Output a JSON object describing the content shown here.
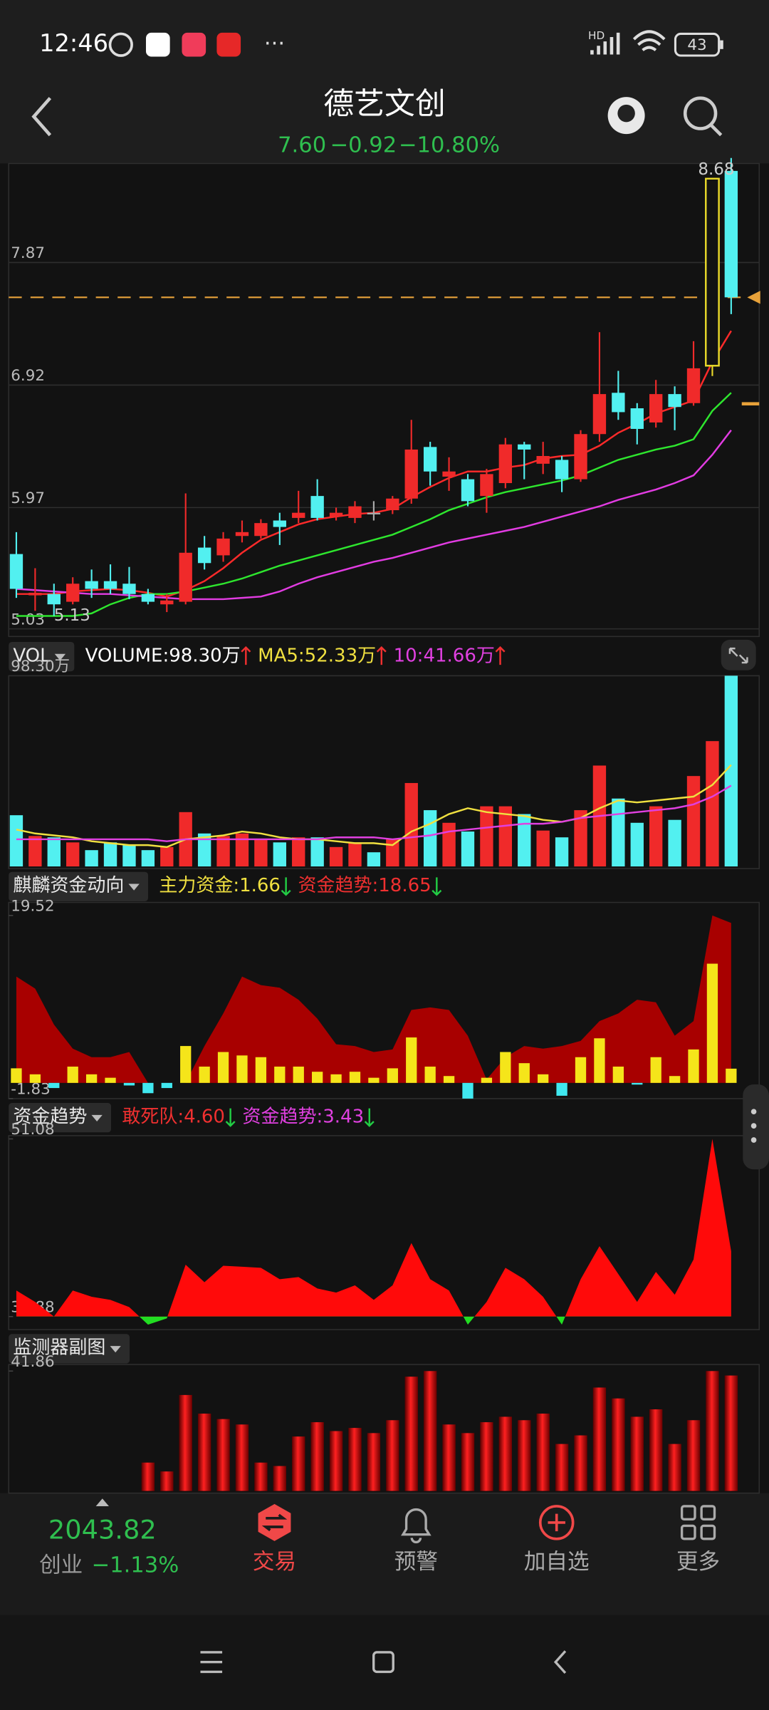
{
  "status_bar": {
    "time": "12:46",
    "network": "HD",
    "battery": "43"
  },
  "header": {
    "title": "德艺文创",
    "price": {
      "value": 7.6,
      "label": "7.60"
    },
    "change": "−0.92",
    "change_pct": "−10.80%"
  },
  "price_chart": {
    "type": "candlestick",
    "ylim": [
      5.03,
      8.68
    ],
    "yticks": [
      5.03,
      5.97,
      6.92,
      7.87
    ],
    "grid": true,
    "open": [
      5.61,
      5.29,
      5.3,
      5.24,
      5.4,
      5.4,
      5.38,
      5.3,
      5.22,
      5.24,
      5.66,
      5.6,
      5.75,
      5.75,
      5.87,
      5.89,
      6.06,
      5.9,
      5.89,
      5.93,
      5.95,
      6.04,
      6.44,
      6.21,
      6.19,
      6.06,
      6.16,
      6.46,
      6.31,
      6.34,
      6.19,
      6.54,
      6.86,
      6.74,
      6.63,
      6.85,
      6.78,
      7.07,
      8.58
    ],
    "high": [
      5.78,
      5.5,
      5.38,
      5.43,
      5.49,
      5.53,
      5.51,
      5.34,
      5.3,
      6.08,
      5.75,
      5.78,
      5.87,
      5.88,
      5.93,
      6.1,
      6.19,
      5.97,
      6.02,
      6.02,
      6.06,
      6.65,
      6.48,
      6.36,
      6.23,
      6.27,
      6.51,
      6.48,
      6.48,
      6.37,
      6.57,
      7.33,
      7.03,
      6.78,
      6.96,
      6.91,
      7.26,
      8.52,
      8.68
    ],
    "low": [
      5.27,
      5.17,
      5.13,
      5.22,
      5.27,
      5.3,
      5.26,
      5.22,
      5.16,
      5.22,
      5.49,
      5.55,
      5.7,
      5.73,
      5.68,
      5.85,
      5.87,
      5.87,
      5.85,
      5.87,
      5.92,
      6.0,
      6.14,
      6.1,
      5.98,
      5.93,
      6.12,
      6.19,
      6.23,
      6.09,
      6.17,
      6.48,
      6.65,
      6.46,
      6.59,
      6.57,
      6.76,
      6.99,
      7.47
    ],
    "close": [
      5.34,
      5.31,
      5.22,
      5.38,
      5.34,
      5.34,
      5.3,
      5.24,
      5.25,
      5.62,
      5.54,
      5.73,
      5.78,
      5.85,
      5.82,
      5.93,
      5.89,
      5.93,
      5.98,
      5.93,
      6.04,
      6.42,
      6.25,
      6.25,
      6.02,
      6.23,
      6.46,
      6.42,
      6.37,
      6.19,
      6.54,
      6.85,
      6.71,
      6.58,
      6.85,
      6.75,
      7.05,
      8.52,
      7.6
    ],
    "colors": {
      "up": "#f02a2a",
      "down": "#52f0f0",
      "flat": "#aaaaaa",
      "highlight": "#e8d82a"
    },
    "highlighted": 37,
    "price_line_color": "#e8a23a",
    "ma_lines": [
      {
        "color": "#ff2a2a",
        "values": [
          5.3,
          5.3,
          5.3,
          5.32,
          5.33,
          5.34,
          5.33,
          5.31,
          5.28,
          5.33,
          5.4,
          5.5,
          5.62,
          5.72,
          5.78,
          5.84,
          5.88,
          5.9,
          5.92,
          5.93,
          5.96,
          6.05,
          6.13,
          6.2,
          6.25,
          6.25,
          6.28,
          6.3,
          6.35,
          6.37,
          6.38,
          6.45,
          6.55,
          6.62,
          6.7,
          6.75,
          6.8,
          7.1,
          7.34
        ]
      },
      {
        "color": "#2ee62e",
        "values": [
          5.13,
          5.13,
          5.13,
          5.13,
          5.15,
          5.22,
          5.27,
          5.3,
          5.3,
          5.32,
          5.35,
          5.38,
          5.42,
          5.47,
          5.52,
          5.56,
          5.6,
          5.64,
          5.68,
          5.72,
          5.76,
          5.82,
          5.88,
          5.95,
          6.0,
          6.05,
          6.09,
          6.12,
          6.15,
          6.18,
          6.22,
          6.28,
          6.34,
          6.38,
          6.42,
          6.45,
          6.5,
          6.72,
          6.86
        ]
      },
      {
        "color": "#e23ce2",
        "values": [
          5.34,
          5.33,
          5.32,
          5.31,
          5.3,
          5.3,
          5.29,
          5.28,
          5.27,
          5.26,
          5.26,
          5.26,
          5.27,
          5.28,
          5.32,
          5.38,
          5.43,
          5.47,
          5.51,
          5.55,
          5.58,
          5.62,
          5.66,
          5.7,
          5.73,
          5.76,
          5.79,
          5.82,
          5.86,
          5.9,
          5.94,
          5.98,
          6.03,
          6.07,
          6.11,
          6.16,
          6.22,
          6.38,
          6.57
        ]
      }
    ]
  },
  "volume": {
    "type": "bar",
    "label": "VOL",
    "indicators": [
      {
        "text": "VOLUME:98.30万",
        "color": "#ffffff",
        "trend": "up"
      },
      {
        "text": "MA5:52.33万",
        "color": "#f0e040",
        "trend": "up"
      },
      {
        "text": "10:41.66万",
        "color": "#e040e0",
        "trend": "up"
      }
    ],
    "ylim": [
      0,
      98.3
    ],
    "yticks": [
      {
        "value": 98.3,
        "label": "98.30万"
      }
    ],
    "values": [
      26.4,
      15.7,
      15,
      12.4,
      8.4,
      12.4,
      11,
      8.4,
      10,
      28,
      17,
      15.7,
      17,
      14,
      12.4,
      15,
      15,
      10,
      12.4,
      7.3,
      14,
      43,
      29,
      22.5,
      18,
      31,
      31,
      27,
      18.5,
      15,
      29,
      52,
      35,
      22.5,
      31,
      24,
      46.6,
      64.6,
      98.3
    ],
    "ma_lines": [
      {
        "color": "#f0e040",
        "values": [
          19,
          17,
          16,
          15,
          13,
          12,
          11,
          11,
          10,
          14,
          15,
          16,
          18,
          17,
          15,
          14,
          14,
          13,
          12,
          12,
          11,
          18,
          22,
          27,
          30,
          28,
          27,
          26,
          24,
          23,
          25,
          30,
          34,
          33,
          34,
          35,
          36,
          42,
          52.33
        ]
      },
      {
        "color": "#e040e0",
        "values": [
          14,
          14,
          14,
          14,
          14,
          14,
          14,
          14,
          13,
          14,
          14,
          14,
          14,
          14,
          14,
          14,
          14,
          15,
          15,
          15,
          14,
          15,
          16,
          18,
          19,
          20,
          21,
          22,
          22,
          23,
          25,
          26,
          27,
          28,
          29,
          30,
          32,
          36,
          41.66
        ]
      }
    ]
  },
  "qilin": {
    "type": "bar",
    "label": "麒麟资金动向",
    "indicators": [
      {
        "text": "主力资金:1.66",
        "color": "#f0e040",
        "trend": "down"
      },
      {
        "text": "资金趋势:18.65",
        "color": "#f03030",
        "trend": "down"
      }
    ],
    "ylim": [
      -1.83,
      19.52
    ],
    "yticks": [
      19.52,
      -1.83
    ],
    "area": {
      "color": "#a80000",
      "values": [
        12.4,
        11,
        6.8,
        4,
        3,
        3,
        3.6,
        0,
        0,
        0,
        4.3,
        8.1,
        12.4,
        11.4,
        11.1,
        9.7,
        7.5,
        4.5,
        4.3,
        3.6,
        3.9,
        8.5,
        8.8,
        8.5,
        5.5,
        0.4,
        3,
        4.3,
        4,
        4.3,
        4.9,
        7.2,
        8.1,
        9.7,
        9.4,
        5.5,
        7.2,
        19.52,
        18.65
      ]
    },
    "values": [
      1.7,
      1,
      -0.6,
      1.9,
      1,
      0.6,
      -0.3,
      -1.2,
      -0.6,
      4.3,
      1.9,
      3.6,
      3.2,
      3,
      1.9,
      1.9,
      1.3,
      1,
      1.3,
      0.6,
      1.7,
      5.3,
      1.9,
      0.8,
      -1.83,
      0.6,
      3.6,
      2.3,
      1,
      -1.5,
      3,
      5.2,
      1.9,
      -0.2,
      3,
      0.8,
      3.9,
      13.9,
      1.66
    ],
    "pos_color": "#f5e51a",
    "neg_color": "#40e8f0"
  },
  "trend": {
    "type": "area",
    "label": "资金趋势",
    "indicators": [
      {
        "text": "敢死队:4.60",
        "color": "#f03030",
        "trend": "down"
      },
      {
        "text": "资金趋势:3.43",
        "color": "#e040e0",
        "trend": "down"
      }
    ],
    "ylim": [
      33.88,
      51.08
    ],
    "yticks": [
      51.08,
      33.88
    ],
    "values": [
      36.4,
      35.3,
      33.88,
      36.4,
      35.8,
      35.5,
      34.8,
      33.1,
      33.7,
      38.9,
      37.2,
      38.8,
      38.7,
      38.6,
      37.5,
      37.7,
      36.6,
      36.2,
      36.9,
      35.5,
      36.9,
      41,
      37.5,
      36.4,
      33.1,
      35.3,
      38.6,
      37.5,
      35.8,
      33.1,
      37.5,
      40.7,
      38,
      35.3,
      38.2,
      36,
      39.4,
      51.08,
      40.2
    ],
    "pos_color": "#ff0a0a",
    "neg_color": "#22dd22"
  },
  "monitor": {
    "type": "bar",
    "label": "监测器副图",
    "ylim": [
      0,
      41.86
    ],
    "yticks": [
      41.86
    ],
    "values": [
      null,
      null,
      null,
      null,
      null,
      null,
      null,
      9.9,
      6.8,
      33.5,
      27,
      25.1,
      23.2,
      9.9,
      8.7,
      19,
      24,
      20.9,
      22,
      20.2,
      24.7,
      39.9,
      41.86,
      23.2,
      20.2,
      24,
      25.9,
      24.7,
      27,
      16.4,
      19.4,
      36.1,
      32.3,
      25.9,
      28.5,
      16.4,
      24.7,
      41.86,
      40.3
    ],
    "color": "#e00000"
  },
  "bottom_bar": {
    "index_value": "2043.82",
    "index_name": "创业",
    "index_change": "−1.13%",
    "tabs": [
      "交易",
      "预警",
      "加自选",
      "更多"
    ]
  }
}
